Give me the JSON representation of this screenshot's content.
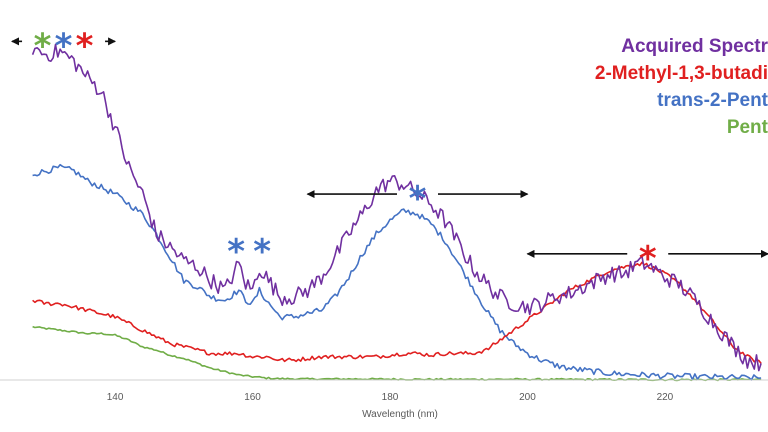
{
  "chart_data": {
    "type": "line",
    "title": "",
    "xlabel": "Wavelength (nm)",
    "ylabel": "",
    "xlim": [
      125,
      235
    ],
    "ylim": [
      0,
      100
    ],
    "x_ticks": [
      "140",
      "160",
      "180",
      "200",
      "220"
    ],
    "grid": false,
    "legend_position": "top-right",
    "series": [
      {
        "name": "Acquired Spectr",
        "color": "#7030a0",
        "noise": 2.5,
        "points": [
          [
            128,
            100
          ],
          [
            130,
            98
          ],
          [
            132,
            99
          ],
          [
            134,
            96
          ],
          [
            136,
            91
          ],
          [
            138,
            87
          ],
          [
            140,
            76
          ],
          [
            142,
            64
          ],
          [
            144,
            56
          ],
          [
            146,
            44
          ],
          [
            148,
            40
          ],
          [
            150,
            36
          ],
          [
            152,
            34
          ],
          [
            154,
            30
          ],
          [
            156,
            27
          ],
          [
            158,
            35
          ],
          [
            159,
            29
          ],
          [
            160,
            27
          ],
          [
            161,
            34
          ],
          [
            162,
            31
          ],
          [
            164,
            25
          ],
          [
            166,
            25
          ],
          [
            168,
            27
          ],
          [
            170,
            31
          ],
          [
            172,
            37
          ],
          [
            174,
            44
          ],
          [
            176,
            50
          ],
          [
            178,
            57
          ],
          [
            180,
            60
          ],
          [
            182,
            59
          ],
          [
            184,
            56
          ],
          [
            186,
            53
          ],
          [
            188,
            48
          ],
          [
            190,
            41
          ],
          [
            192,
            34
          ],
          [
            194,
            29
          ],
          [
            196,
            25
          ],
          [
            198,
            23
          ],
          [
            200,
            22
          ],
          [
            202,
            23
          ],
          [
            204,
            25
          ],
          [
            206,
            26
          ],
          [
            208,
            28
          ],
          [
            210,
            30
          ],
          [
            212,
            32
          ],
          [
            214,
            32
          ],
          [
            216,
            35
          ],
          [
            217,
            35
          ],
          [
            218,
            34
          ],
          [
            220,
            31
          ],
          [
            222,
            29
          ],
          [
            224,
            25
          ],
          [
            226,
            20
          ],
          [
            228,
            15
          ],
          [
            230,
            10
          ],
          [
            232,
            6
          ],
          [
            234,
            5
          ]
        ]
      },
      {
        "name": "2-Methyl-1,3-butadi",
        "color": "#e02020",
        "noise": 0.6,
        "points": [
          [
            128,
            24
          ],
          [
            130,
            23
          ],
          [
            132,
            23
          ],
          [
            134,
            22
          ],
          [
            136,
            21
          ],
          [
            138,
            20
          ],
          [
            140,
            19
          ],
          [
            142,
            17
          ],
          [
            144,
            15
          ],
          [
            146,
            13
          ],
          [
            148,
            11
          ],
          [
            150,
            10
          ],
          [
            152,
            9
          ],
          [
            154,
            8
          ],
          [
            156,
            8
          ],
          [
            158,
            8
          ],
          [
            160,
            7
          ],
          [
            162,
            7
          ],
          [
            164,
            6
          ],
          [
            166,
            6
          ],
          [
            168,
            6.5
          ],
          [
            170,
            7
          ],
          [
            172,
            7
          ],
          [
            174,
            7
          ],
          [
            176,
            7
          ],
          [
            178,
            7
          ],
          [
            180,
            7.5
          ],
          [
            182,
            8
          ],
          [
            184,
            8
          ],
          [
            186,
            7.5
          ],
          [
            188,
            8
          ],
          [
            190,
            8
          ],
          [
            192,
            8
          ],
          [
            194,
            9
          ],
          [
            196,
            12
          ],
          [
            198,
            15
          ],
          [
            200,
            18
          ],
          [
            202,
            21
          ],
          [
            204,
            24
          ],
          [
            206,
            27
          ],
          [
            208,
            29
          ],
          [
            210,
            31
          ],
          [
            212,
            33
          ],
          [
            214,
            34
          ],
          [
            216,
            35
          ],
          [
            217,
            35
          ],
          [
            218,
            34
          ],
          [
            220,
            32
          ],
          [
            222,
            29
          ],
          [
            224,
            25
          ],
          [
            226,
            20
          ],
          [
            228,
            15
          ],
          [
            230,
            10
          ],
          [
            232,
            7
          ],
          [
            234,
            5
          ]
        ]
      },
      {
        "name": "trans-2-Pent",
        "color": "#4472c4",
        "noise": 0.9,
        "points": [
          [
            128,
            62
          ],
          [
            130,
            63
          ],
          [
            132,
            64
          ],
          [
            134,
            63
          ],
          [
            136,
            60
          ],
          [
            138,
            58
          ],
          [
            140,
            56
          ],
          [
            142,
            53
          ],
          [
            144,
            50
          ],
          [
            146,
            44
          ],
          [
            148,
            37
          ],
          [
            150,
            30
          ],
          [
            152,
            28
          ],
          [
            154,
            25
          ],
          [
            156,
            24
          ],
          [
            158,
            27
          ],
          [
            159,
            24
          ],
          [
            160,
            23
          ],
          [
            161,
            27
          ],
          [
            162,
            24
          ],
          [
            164,
            19
          ],
          [
            166,
            19
          ],
          [
            168,
            20
          ],
          [
            170,
            21
          ],
          [
            172,
            25
          ],
          [
            174,
            31
          ],
          [
            176,
            38
          ],
          [
            178,
            44
          ],
          [
            180,
            48
          ],
          [
            182,
            51
          ],
          [
            184,
            50
          ],
          [
            186,
            47
          ],
          [
            188,
            42
          ],
          [
            190,
            35
          ],
          [
            192,
            28
          ],
          [
            194,
            21
          ],
          [
            196,
            15
          ],
          [
            198,
            11
          ],
          [
            200,
            8
          ],
          [
            202,
            6
          ],
          [
            204,
            4.5
          ],
          [
            206,
            3.5
          ],
          [
            208,
            3
          ],
          [
            210,
            2.5
          ],
          [
            212,
            2
          ],
          [
            214,
            1.8
          ],
          [
            216,
            1.6
          ],
          [
            218,
            1.4
          ],
          [
            220,
            1.2
          ],
          [
            224,
            1
          ],
          [
            228,
            0.8
          ],
          [
            234,
            0.6
          ]
        ]
      },
      {
        "name": "Pent",
        "color": "#70ad47",
        "noise": 0.25,
        "points": [
          [
            128,
            16
          ],
          [
            130,
            15.5
          ],
          [
            132,
            15
          ],
          [
            134,
            14.5
          ],
          [
            136,
            14
          ],
          [
            138,
            14
          ],
          [
            140,
            13.5
          ],
          [
            142,
            12
          ],
          [
            144,
            10
          ],
          [
            146,
            9
          ],
          [
            148,
            7.5
          ],
          [
            150,
            6.5
          ],
          [
            152,
            5
          ],
          [
            154,
            3.5
          ],
          [
            156,
            2.5
          ],
          [
            158,
            1.5
          ],
          [
            160,
            1
          ],
          [
            162,
            0.6
          ],
          [
            164,
            0.4
          ],
          [
            168,
            0.3
          ],
          [
            175,
            0.3
          ],
          [
            185,
            0.2
          ],
          [
            200,
            0.2
          ],
          [
            220,
            0.1
          ],
          [
            234,
            0.1
          ]
        ]
      }
    ],
    "annotations": [
      {
        "kind": "double-arrow",
        "x1": 125,
        "x2": 140,
        "y": 102,
        "stars": [
          {
            "text": "*",
            "color": "#70ad47"
          },
          {
            "text": "*",
            "color": "#4472c4"
          },
          {
            "text": "*",
            "color": "#e02020"
          }
        ]
      },
      {
        "kind": "stars",
        "x": 159.5,
        "y": 40,
        "stars": [
          {
            "text": "*",
            "color": "#4472c4"
          },
          {
            "text": "*",
            "color": "#4472c4"
          }
        ]
      },
      {
        "kind": "double-arrow",
        "x1": 168,
        "x2": 200,
        "y": 56,
        "stars": [
          {
            "text": "*",
            "color": "#4472c4"
          }
        ]
      },
      {
        "kind": "double-arrow",
        "x1": 200,
        "x2": 235,
        "y": 38,
        "stars": [
          {
            "text": "*",
            "color": "#e02020"
          }
        ]
      }
    ]
  }
}
